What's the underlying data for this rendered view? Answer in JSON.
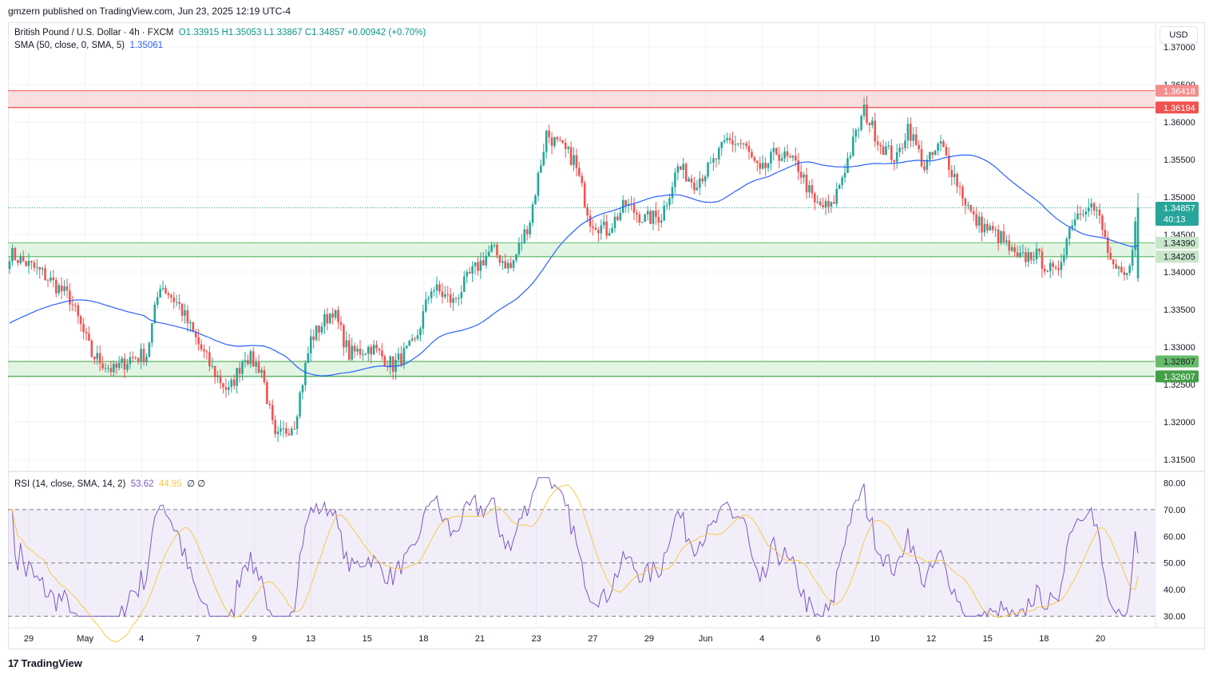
{
  "publish_line": "gmzern published on TradingView.com, Jun 23, 2025 12:19 UTC-4",
  "legend": {
    "symbol": "British Pound / U.S. Dollar · 4h · FXCM",
    "open": "O1.33915",
    "high": "H1.35053",
    "low": "L1.33867",
    "close": "C1.34857",
    "change": "+0.00942 (+0.70%)",
    "sma_label": "SMA (50, close, 0, SMA, 5)",
    "sma_value": "1.35061",
    "rsi_label": "RSI (14, close, SMA, 14, 2)",
    "rsi_value": "53.62",
    "rsi_sma_value": "44.95",
    "rsi_extra": "∅ ∅"
  },
  "currency": "USD",
  "brand": "TradingView",
  "colors": {
    "up": "#26a69a",
    "down": "#ef5350",
    "sma": "#2962ff",
    "rsi": "#7e57c2",
    "rsi_sma": "#f7c948",
    "resistance_zone": "#f8d7d7",
    "support_zone": "#dbf2dc"
  },
  "chart_data": [
    {
      "type": "candlestick",
      "title": "British Pound / U.S. Dollar · 4h · FXCM",
      "price_axis": {
        "range": [
          1.3135,
          1.3732
        ],
        "ticks": [
          "1.37000",
          "1.36500",
          "1.36000",
          "1.35500",
          "1.35000",
          "1.34500",
          "1.34000",
          "1.33500",
          "1.33000",
          "1.32500",
          "1.32000",
          "1.31500"
        ]
      },
      "time_axis": {
        "labels": [
          "29",
          "May",
          "4",
          "7",
          "9",
          "13",
          "15",
          "18",
          "21",
          "23",
          "27",
          "29",
          "Jun",
          "4",
          "6",
          "10",
          "12",
          "15",
          "18",
          "20"
        ]
      },
      "anchors_close": [
        [
          0,
          1.3425
        ],
        [
          12,
          1.3398
        ],
        [
          22,
          1.3365
        ],
        [
          30,
          1.329
        ],
        [
          38,
          1.3268
        ],
        [
          44,
          1.3285
        ],
        [
          50,
          1.329
        ],
        [
          55,
          1.3385
        ],
        [
          62,
          1.3355
        ],
        [
          68,
          1.331
        ],
        [
          74,
          1.327
        ],
        [
          80,
          1.324
        ],
        [
          86,
          1.329
        ],
        [
          92,
          1.327
        ],
        [
          97,
          1.3175
        ],
        [
          104,
          1.32
        ],
        [
          110,
          1.331
        ],
        [
          118,
          1.335
        ],
        [
          124,
          1.329
        ],
        [
          132,
          1.33
        ],
        [
          140,
          1.3275
        ],
        [
          148,
          1.3305
        ],
        [
          154,
          1.338
        ],
        [
          162,
          1.336
        ],
        [
          168,
          1.3395
        ],
        [
          176,
          1.343
        ],
        [
          183,
          1.3405
        ],
        [
          190,
          1.347
        ],
        [
          196,
          1.3585
        ],
        [
          200,
          1.357
        ],
        [
          206,
          1.355
        ],
        [
          212,
          1.347
        ],
        [
          218,
          1.3455
        ],
        [
          225,
          1.349
        ],
        [
          232,
          1.347
        ],
        [
          238,
          1.3475
        ],
        [
          244,
          1.354
        ],
        [
          250,
          1.352
        ],
        [
          256,
          1.354
        ],
        [
          262,
          1.3575
        ],
        [
          268,
          1.357
        ],
        [
          274,
          1.353
        ],
        [
          280,
          1.356
        ],
        [
          288,
          1.354
        ],
        [
          294,
          1.349
        ],
        [
          300,
          1.3485
        ],
        [
          306,
          1.355
        ],
        [
          312,
          1.3615
        ],
        [
          318,
          1.357
        ],
        [
          324,
          1.355
        ],
        [
          328,
          1.3595
        ],
        [
          334,
          1.354
        ],
        [
          340,
          1.357
        ],
        [
          346,
          1.352
        ],
        [
          352,
          1.347
        ],
        [
          358,
          1.3455
        ],
        [
          362,
          1.3445
        ],
        [
          368,
          1.3415
        ],
        [
          374,
          1.3425
        ],
        [
          382,
          1.3395
        ],
        [
          388,
          1.347
        ],
        [
          394,
          1.3495
        ],
        [
          398,
          1.347
        ],
        [
          403,
          1.34
        ],
        [
          408,
          1.3392
        ],
        [
          412,
          1.3486
        ]
      ],
      "resistance_zone": [
        1.36194,
        1.36418
      ],
      "support_zone_1": [
        1.34205,
        1.3439
      ],
      "support_zone_2": [
        1.32607,
        1.32807
      ],
      "last_price": "1.34857",
      "countdown": "40:13",
      "zone_labels": [
        "1.36418",
        "1.36194",
        "1.34390",
        "1.34205",
        "1.32807",
        "1.32607"
      ],
      "sma_period": 50,
      "sma_last": 1.35061
    },
    {
      "type": "line",
      "title": "RSI (14, close, SMA, 14, 2)",
      "range": [
        26,
        84
      ],
      "ticks": [
        "80.00",
        "70.00",
        "60.00",
        "50.00",
        "40.00",
        "30.00"
      ],
      "levels": {
        "upper": 70,
        "middle": 50,
        "lower": 30
      },
      "rsi_last": 53.62,
      "rsi_sma_last": 44.95
    }
  ]
}
